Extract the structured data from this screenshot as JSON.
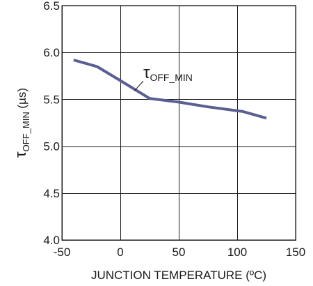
{
  "chart_data": {
    "type": "line",
    "xlabel": "JUNCTION TEMPERATURE (ºC)",
    "ylabel": {
      "main": "τ",
      "sub": "OFF_MIN",
      "tail": " (µs)"
    },
    "xlim": [
      -50,
      150
    ],
    "ylim": [
      4.0,
      6.5
    ],
    "x_ticks": [
      -50,
      0,
      50,
      100,
      150
    ],
    "y_ticks": [
      "4.0",
      "4.5",
      "5.0",
      "5.5",
      "6.0",
      "6.5"
    ],
    "grid": true,
    "series": [
      {
        "name": {
          "main": "τ",
          "sub": "OFF_MIN"
        },
        "color": "#5a5f92",
        "x": [
          -40,
          -20,
          0,
          25,
          50,
          75,
          105,
          125
        ],
        "y": [
          5.92,
          5.85,
          5.7,
          5.51,
          5.47,
          5.42,
          5.37,
          5.3
        ]
      }
    ],
    "annotation": {
      "target_x": 12,
      "target_y": 5.59,
      "label_x": 22,
      "label_y": 5.74
    }
  }
}
